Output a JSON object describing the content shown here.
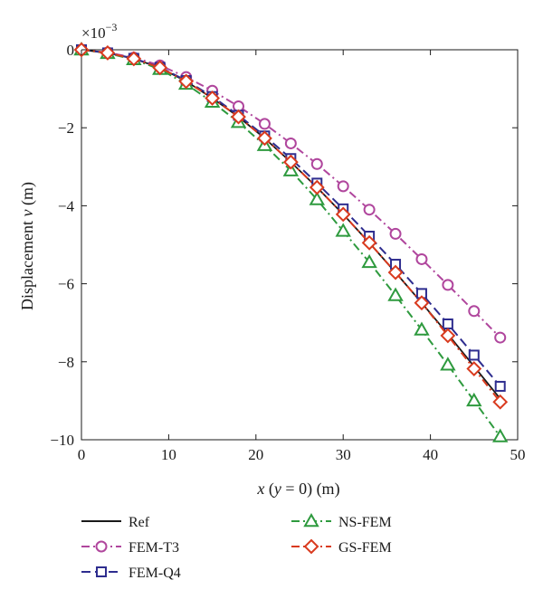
{
  "chart_data": {
    "type": "line",
    "title": "",
    "xlabel": "x (y = 0) (m)",
    "xlabel_parts": [
      "x",
      " (",
      "y",
      " = 0) (m)"
    ],
    "ylabel": "Displacement v (m)",
    "ylabel_parts": [
      "Displacement ",
      "v",
      " (m)"
    ],
    "y_multiplier": "×10",
    "y_multiplier_exponent": "−3",
    "xlim": [
      0,
      50
    ],
    "ylim": [
      -10,
      0
    ],
    "x_ticks": [
      0,
      10,
      20,
      30,
      40,
      50
    ],
    "x_tick_labels": [
      "0",
      "10",
      "20",
      "30",
      "40",
      "50"
    ],
    "y_ticks": [
      0,
      -2,
      -4,
      -6,
      -8,
      -10
    ],
    "y_tick_labels": [
      "0",
      "−2",
      "−4",
      "−6",
      "−8",
      "−10"
    ],
    "grid": false,
    "legend_position": "bottom",
    "series": [
      {
        "name": "Ref",
        "color": "#1a1a1a",
        "dash": "solid",
        "marker": "none",
        "x": [
          0,
          3,
          6,
          9,
          12,
          15,
          18,
          21,
          24,
          27,
          30,
          33,
          36,
          39,
          42,
          45,
          48
        ],
        "values": [
          0,
          -0.08,
          -0.23,
          -0.46,
          -0.81,
          -1.24,
          -1.72,
          -2.27,
          -2.88,
          -3.53,
          -4.22,
          -4.95,
          -5.71,
          -6.49,
          -7.29,
          -8.12,
          -8.95
        ]
      },
      {
        "name": "FEM-T3",
        "color": "#b0469d",
        "dash": "dashdot",
        "marker": "circle",
        "x": [
          0,
          3,
          6,
          9,
          12,
          15,
          18,
          21,
          24,
          27,
          30,
          33,
          36,
          39,
          42,
          45,
          48
        ],
        "values": [
          0,
          -0.07,
          -0.2,
          -0.4,
          -0.7,
          -1.05,
          -1.45,
          -1.9,
          -2.4,
          -2.93,
          -3.5,
          -4.1,
          -4.72,
          -5.37,
          -6.03,
          -6.7,
          -7.38
        ]
      },
      {
        "name": "FEM-Q4",
        "color": "#2e2d8f",
        "dash": "dashed",
        "marker": "square",
        "x": [
          0,
          3,
          6,
          9,
          12,
          15,
          18,
          21,
          24,
          27,
          30,
          33,
          36,
          39,
          42,
          45,
          48
        ],
        "values": [
          0,
          -0.08,
          -0.22,
          -0.45,
          -0.79,
          -1.2,
          -1.68,
          -2.21,
          -2.79,
          -3.42,
          -4.08,
          -4.78,
          -5.5,
          -6.25,
          -7.03,
          -7.83,
          -8.63
        ]
      },
      {
        "name": "NS-FEM",
        "color": "#2e9a3e",
        "dash": "dashdot",
        "marker": "triangle",
        "x": [
          0,
          3,
          6,
          9,
          12,
          15,
          18,
          21,
          24,
          27,
          30,
          33,
          36,
          39,
          42,
          45,
          48
        ],
        "values": [
          0,
          -0.09,
          -0.25,
          -0.5,
          -0.88,
          -1.34,
          -1.86,
          -2.45,
          -3.1,
          -3.84,
          -4.65,
          -5.45,
          -6.3,
          -7.18,
          -8.08,
          -9.0,
          -9.92
        ]
      },
      {
        "name": "GS-FEM",
        "color": "#d93a1e",
        "dash": "dashdot",
        "marker": "diamond",
        "x": [
          0,
          3,
          6,
          9,
          12,
          15,
          18,
          21,
          24,
          27,
          30,
          33,
          36,
          39,
          42,
          45,
          48
        ],
        "values": [
          0,
          -0.08,
          -0.23,
          -0.46,
          -0.81,
          -1.24,
          -1.72,
          -2.27,
          -2.88,
          -3.53,
          -4.22,
          -4.95,
          -5.71,
          -6.49,
          -7.33,
          -8.18,
          -9.03
        ]
      }
    ]
  }
}
